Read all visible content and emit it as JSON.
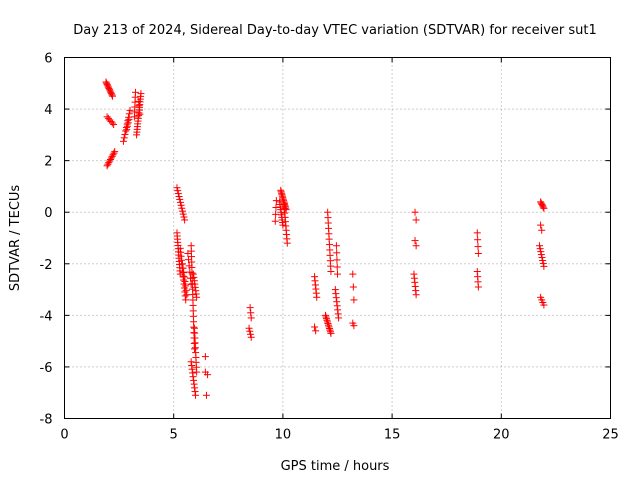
{
  "chart_data": {
    "type": "scatter",
    "title": "Day 213 of 2024, Sidereal Day-to-day VTEC variation (SDTVAR) for receiver sut1",
    "xlabel": "GPS time / hours",
    "ylabel": "SDTVAR / TECUs",
    "xlim": [
      0,
      25
    ],
    "ylim": [
      -8,
      6
    ],
    "x_ticks": [
      0,
      5,
      10,
      15,
      20,
      25
    ],
    "y_ticks": [
      -8,
      -6,
      -4,
      -2,
      0,
      2,
      4,
      6
    ],
    "x_tick_labels": [
      "0",
      "5",
      "10",
      "15",
      "20",
      "25"
    ],
    "y_tick_labels": [
      "-8",
      "-6",
      "-4",
      "-2",
      "0",
      "2",
      "4",
      "6"
    ],
    "grid": true,
    "marker": "+",
    "color": "#ff0000",
    "segments": [
      {
        "x0": 1.9,
        "y0": 5.05,
        "x1": 2.2,
        "y1": 4.5,
        "n": 12
      },
      {
        "x0": 1.95,
        "y0": 3.7,
        "x1": 2.25,
        "y1": 3.4,
        "n": 6
      },
      {
        "x0": 1.95,
        "y0": 1.8,
        "x1": 2.3,
        "y1": 2.35,
        "n": 10
      },
      {
        "x0": 2.7,
        "y0": 2.75,
        "x1": 3.0,
        "y1": 3.95,
        "n": 10
      },
      {
        "x0": 2.85,
        "y0": 3.2,
        "x1": 2.95,
        "y1": 3.6,
        "n": 4
      },
      {
        "x0": 3.2,
        "y0": 3.7,
        "x1": 3.25,
        "y1": 4.65,
        "n": 6
      },
      {
        "x0": 3.3,
        "y0": 3.0,
        "x1": 3.5,
        "y1": 4.6,
        "n": 16
      },
      {
        "x0": 3.4,
        "y0": 4.3,
        "x1": 3.45,
        "y1": 3.8,
        "n": 4
      },
      {
        "x0": 5.15,
        "y0": 0.95,
        "x1": 5.5,
        "y1": -0.3,
        "n": 12
      },
      {
        "x0": 5.15,
        "y0": -0.8,
        "x1": 5.3,
        "y1": -2.4,
        "n": 14
      },
      {
        "x0": 5.3,
        "y0": -1.4,
        "x1": 5.55,
        "y1": -3.4,
        "n": 14
      },
      {
        "x0": 5.4,
        "y0": -2.0,
        "x1": 5.6,
        "y1": -3.2,
        "n": 8
      },
      {
        "x0": 5.65,
        "y0": -1.6,
        "x1": 5.8,
        "y1": -2.8,
        "n": 6
      },
      {
        "x0": 5.8,
        "y0": -1.3,
        "x1": 5.95,
        "y1": -5.3,
        "n": 20
      },
      {
        "x0": 5.9,
        "y0": -2.4,
        "x1": 6.05,
        "y1": -3.3,
        "n": 8
      },
      {
        "x0": 5.95,
        "y0": -4.5,
        "x1": 6.05,
        "y1": -6.2,
        "n": 10
      },
      {
        "x0": 5.8,
        "y0": -5.8,
        "x1": 6.0,
        "y1": -7.1,
        "n": 10
      },
      {
        "x0": 6.45,
        "y0": -5.6,
        "x1": 6.5,
        "y1": -5.6,
        "n": 1
      },
      {
        "x0": 6.45,
        "y0": -6.2,
        "x1": 6.55,
        "y1": -6.3,
        "n": 2
      },
      {
        "x0": 6.5,
        "y0": -7.1,
        "x1": 6.5,
        "y1": -7.1,
        "n": 1
      },
      {
        "x0": 8.5,
        "y0": -3.7,
        "x1": 8.55,
        "y1": -4.1,
        "n": 3
      },
      {
        "x0": 8.45,
        "y0": -4.5,
        "x1": 8.55,
        "y1": -4.85,
        "n": 4
      },
      {
        "x0": 9.65,
        "y0": -0.35,
        "x1": 9.7,
        "y1": 0.45,
        "n": 4
      },
      {
        "x0": 9.85,
        "y0": 0.4,
        "x1": 10.0,
        "y1": -0.5,
        "n": 10
      },
      {
        "x0": 9.9,
        "y0": 0.85,
        "x1": 10.15,
        "y1": 0.1,
        "n": 14
      },
      {
        "x0": 10.05,
        "y0": 0.3,
        "x1": 10.2,
        "y1": -1.2,
        "n": 10
      },
      {
        "x0": 11.45,
        "y0": -2.5,
        "x1": 11.55,
        "y1": -3.3,
        "n": 6
      },
      {
        "x0": 11.45,
        "y0": -4.45,
        "x1": 11.5,
        "y1": -4.6,
        "n": 2
      },
      {
        "x0": 11.95,
        "y0": -4.0,
        "x1": 12.2,
        "y1": -4.7,
        "n": 12
      },
      {
        "x0": 12.05,
        "y0": 0.0,
        "x1": 12.2,
        "y1": -2.3,
        "n": 12
      },
      {
        "x0": 12.4,
        "y0": -3.0,
        "x1": 12.55,
        "y1": -4.1,
        "n": 8
      },
      {
        "x0": 12.45,
        "y0": -1.3,
        "x1": 12.5,
        "y1": -2.4,
        "n": 5
      },
      {
        "x0": 13.2,
        "y0": -2.4,
        "x1": 13.25,
        "y1": -3.4,
        "n": 3
      },
      {
        "x0": 13.2,
        "y0": -4.3,
        "x1": 13.25,
        "y1": -4.4,
        "n": 2
      },
      {
        "x0": 16.05,
        "y0": 0.0,
        "x1": 16.1,
        "y1": -0.3,
        "n": 2
      },
      {
        "x0": 16.05,
        "y0": -1.1,
        "x1": 16.1,
        "y1": -1.3,
        "n": 2
      },
      {
        "x0": 16.0,
        "y0": -2.4,
        "x1": 16.1,
        "y1": -3.2,
        "n": 6
      },
      {
        "x0": 18.9,
        "y0": -0.8,
        "x1": 18.95,
        "y1": -1.6,
        "n": 4
      },
      {
        "x0": 18.9,
        "y0": -2.3,
        "x1": 18.95,
        "y1": -2.9,
        "n": 4
      },
      {
        "x0": 21.8,
        "y0": 0.4,
        "x1": 21.95,
        "y1": 0.15,
        "n": 6
      },
      {
        "x0": 21.8,
        "y0": -0.5,
        "x1": 21.85,
        "y1": -0.7,
        "n": 2
      },
      {
        "x0": 21.75,
        "y0": -1.3,
        "x1": 21.95,
        "y1": -2.1,
        "n": 8
      },
      {
        "x0": 21.8,
        "y0": -3.3,
        "x1": 21.95,
        "y1": -3.6,
        "n": 4
      }
    ]
  }
}
